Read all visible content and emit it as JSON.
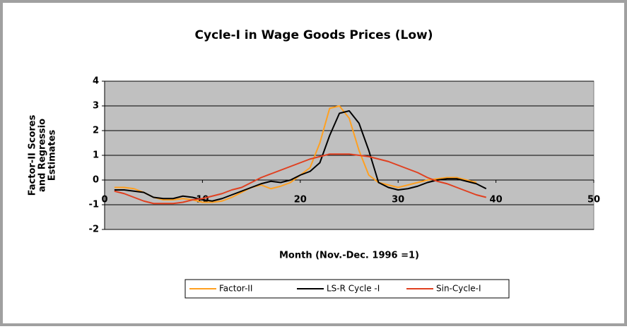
{
  "chart_data": {
    "type": "line",
    "title": "Cycle-I in Wage Goods Prices (Low)",
    "x_label": "Month (Nov.-Dec. 1996 =1)",
    "y_label": [
      "Factor-II Scores",
      "and Regressio",
      "Estimates"
    ],
    "x": [
      1,
      2,
      3,
      4,
      5,
      6,
      7,
      8,
      9,
      10,
      11,
      12,
      13,
      14,
      15,
      16,
      17,
      18,
      19,
      20,
      21,
      22,
      23,
      24,
      25,
      26,
      27,
      28,
      29,
      30,
      31,
      32,
      33,
      34,
      35,
      36,
      37,
      38,
      39
    ],
    "series": [
      {
        "name": "Factor-II",
        "color": "#ffa020",
        "values": [
          -0.3,
          -0.3,
          -0.35,
          -0.5,
          -0.7,
          -0.8,
          -0.8,
          -0.75,
          -0.8,
          -0.9,
          -0.9,
          -0.85,
          -0.7,
          -0.5,
          -0.3,
          -0.2,
          -0.35,
          -0.25,
          -0.1,
          0.2,
          0.5,
          1.5,
          2.9,
          3.0,
          2.5,
          1.2,
          0.2,
          -0.1,
          -0.2,
          -0.3,
          -0.2,
          -0.1,
          0,
          0.05,
          0.1,
          0.1,
          0,
          -0.1,
          null
        ]
      },
      {
        "name": "LS-R Cycle -I",
        "color": "#000000",
        "values": [
          -0.4,
          -0.4,
          -0.45,
          -0.5,
          -0.7,
          -0.75,
          -0.75,
          -0.65,
          -0.7,
          -0.8,
          -0.85,
          -0.75,
          -0.6,
          -0.45,
          -0.3,
          -0.15,
          -0.05,
          -0.1,
          0,
          0.2,
          0.35,
          0.7,
          1.8,
          2.7,
          2.8,
          2.3,
          1.2,
          -0.1,
          -0.3,
          -0.4,
          -0.35,
          -0.25,
          -0.1,
          0,
          0.05,
          0.05,
          -0.05,
          -0.15,
          -0.35
        ]
      },
      {
        "name": "Sin-Cycle-I",
        "color": "#e04020",
        "values": [
          -0.45,
          -0.55,
          -0.7,
          -0.85,
          -0.95,
          -0.95,
          -0.95,
          -0.9,
          -0.8,
          -0.75,
          -0.65,
          -0.55,
          -0.4,
          -0.3,
          -0.1,
          0.1,
          0.25,
          0.4,
          0.55,
          0.7,
          0.85,
          0.95,
          1.05,
          1.05,
          1.05,
          1.0,
          0.95,
          0.85,
          0.75,
          0.6,
          0.45,
          0.3,
          0.1,
          -0.05,
          -0.15,
          -0.3,
          -0.45,
          -0.6,
          -0.7
        ]
      }
    ],
    "xlim": [
      0,
      50
    ],
    "xticks": [
      0,
      10,
      20,
      30,
      40,
      50
    ],
    "ylim": [
      -2,
      4
    ],
    "yticks": [
      -2,
      -1,
      0,
      1,
      2,
      3,
      4
    ],
    "grid": true,
    "legend": "bottom"
  }
}
